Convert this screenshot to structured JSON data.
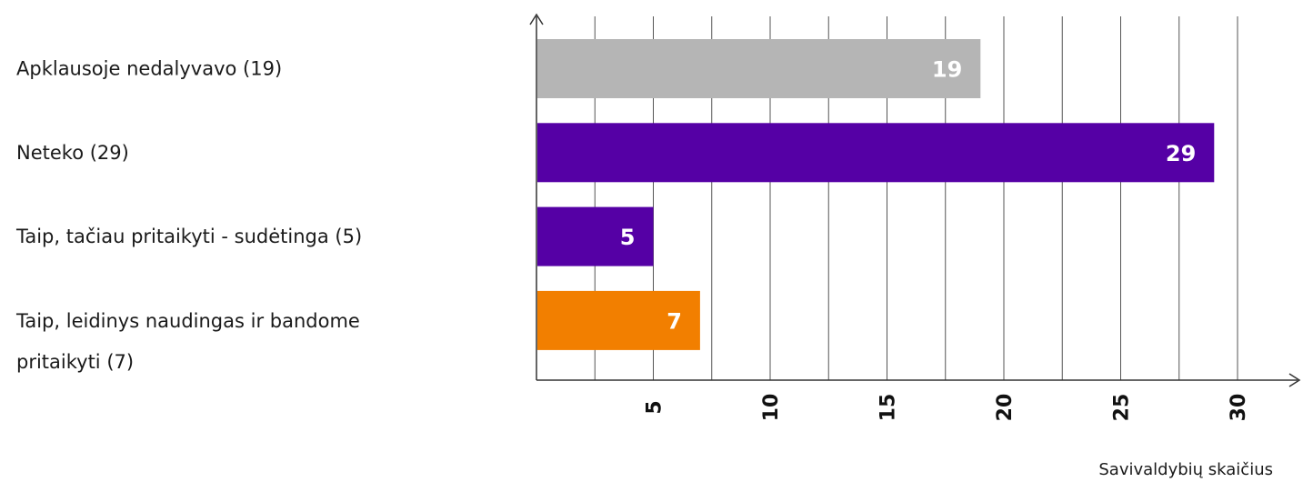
{
  "chart_data": {
    "type": "bar",
    "orientation": "horizontal",
    "categories": [
      "Apklausoje nedalyvavo (19)",
      "Neteko (29)",
      "Taip, tačiau pritaikyti - sudėtinga (5)",
      "Taip, leidinys naudingas ir bandome pritaikyti (7)"
    ],
    "values": [
      19,
      29,
      5,
      7
    ],
    "value_labels": [
      "19",
      "29",
      "5",
      "7"
    ],
    "bar_colors": [
      "#b5b5b5",
      "#5500a5",
      "#5500a5",
      "#f27f00"
    ],
    "xlabel": "Savivaldybių skaičius",
    "xlim": [
      0,
      32
    ],
    "xticks": [
      5,
      10,
      15,
      20,
      25,
      30
    ],
    "xtick_labels": [
      "5",
      "10",
      "15",
      "20",
      "25",
      "30"
    ],
    "grid": true,
    "grid_color": "#555555"
  }
}
